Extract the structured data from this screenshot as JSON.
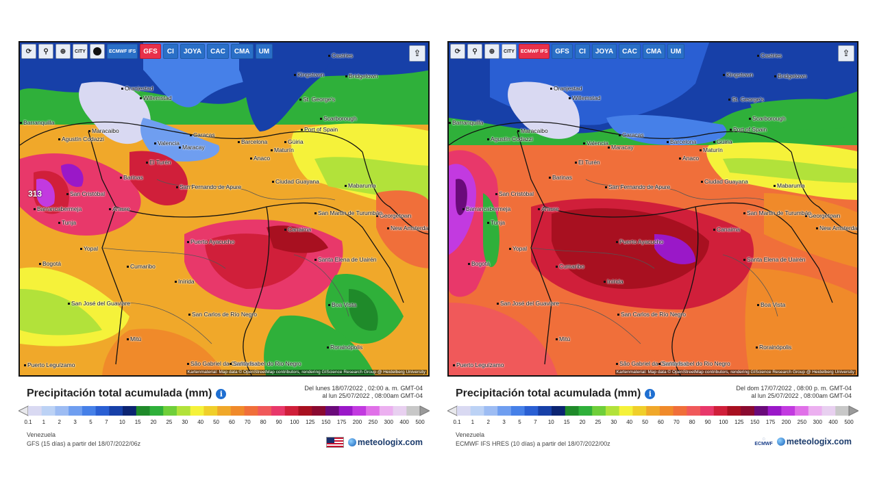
{
  "panels": [
    {
      "toolbar": {
        "refresh_icon": "refresh-icon",
        "location_icon": "map-pin-icon",
        "zoom_icon": "zoom-icon",
        "city_label": "CITY",
        "circle_icon": "black-circle-icon",
        "models": [
          "ECMWF IFS",
          "GFS",
          "CI",
          "JOYA",
          "CAC",
          "CMA",
          "UM"
        ],
        "active_model": "GFS",
        "share_icon": "share-icon"
      },
      "attribution": "Kartenmaterial: Map data © OpenStreetMap contributors, rendering GIScience Research Group @ Heidelberg University",
      "title": "Precipitación total acumulada (mm)",
      "period_line1": "Del lunes 18/07/2022 , 02:00 a. m. GMT-04",
      "period_line2": "al lun 25/07/2022 , 08:00am GMT-04",
      "region": "Venezuela",
      "model_run": "GFS (15 días) a partir del 18/07/2022/06z",
      "brand": "meteologix.com",
      "max_label": "313"
    },
    {
      "toolbar": {
        "refresh_icon": "refresh-icon",
        "location_icon": "map-pin-icon",
        "zoom_icon": "zoom-icon",
        "city_label": "CITY",
        "models": [
          "ECMWF IFS",
          "GFS",
          "CI",
          "JOYA",
          "CAC",
          "CMA",
          "UM"
        ],
        "active_model": "ECMWF IFS",
        "share_icon": "share-icon"
      },
      "attribution": "Kartenmaterial: Map data © OpenStreetMap contributors, rendering GIScience Research Group @ Heidelberg University",
      "title": "Precipitación total acumulada (mm)",
      "period_line1": "Del dom 17/07/2022 , 08:00 p. m. GMT-04",
      "period_line2": "al lun 25/07/2022 , 08:00am GMT-04",
      "region": "Venezuela",
      "model_run": "ECMWF IFS HRES (10 días) a partir del 18/07/2022/00z",
      "brand": "meteologix.com",
      "ecmwf_logo": "ECMWF"
    }
  ],
  "cities": [
    "Castries",
    "Kingstown",
    "Bridgetown",
    "Oranjestad",
    "Willemstad",
    "St. George's",
    "Scarborough",
    "Port of Spain",
    "Barranquilla",
    "Maracaibo",
    "Caracas",
    "Barcelona",
    "Güiria",
    "Valencia",
    "Maracay",
    "Maturín",
    "Agustín Codazzi",
    "Anaco",
    "Barinas",
    "El Turén",
    "Ciudad Guayana",
    "Mabaruma",
    "San Fernando de Apure",
    "San Cristóbal",
    "Barrancabermeja",
    "Araure",
    "Georgetown",
    "San Martín de Turumbán",
    "Canaima",
    "New Amsterdam",
    "Puerto Ayacucho",
    "Tunja",
    "Yopal",
    "Santa Elena de Uairén",
    "Bogotá",
    "Cumaribo",
    "Inírida",
    "Boa Vista",
    "San José del Guaviare",
    "San Carlos de Río Negro",
    "Mitú",
    "Rorainópolis",
    "São Gabriel da Cachoeira",
    "Santa Isabel do Rio Negro",
    "Puerto Leguízamo"
  ],
  "legend_colors": [
    "#d9d9f2",
    "#bcd2f5",
    "#9dbcf3",
    "#6f9ef0",
    "#4680e8",
    "#2a5fd3",
    "#1740a8",
    "#0c2472",
    "#1f8a2a",
    "#2fb03a",
    "#6fcf3a",
    "#b2e23a",
    "#f5f23a",
    "#f0cf2a",
    "#f0a82a",
    "#f08a2a",
    "#f06f3a",
    "#f0595a",
    "#e8386a",
    "#d01f3a",
    "#a81020",
    "#8a0a30",
    "#6a0a7a",
    "#9a18c8",
    "#c23ae0",
    "#e070e8",
    "#ecb0f0",
    "#e8d0f0",
    "#c8c8c8"
  ],
  "legend_ticks": [
    "0.1",
    "1",
    "2",
    "3",
    "5",
    "7",
    "10",
    "15",
    "20",
    "25",
    "30",
    "40",
    "50",
    "60",
    "70",
    "80",
    "90",
    "100",
    "125",
    "150",
    "175",
    "200",
    "250",
    "300",
    "400",
    "500"
  ]
}
